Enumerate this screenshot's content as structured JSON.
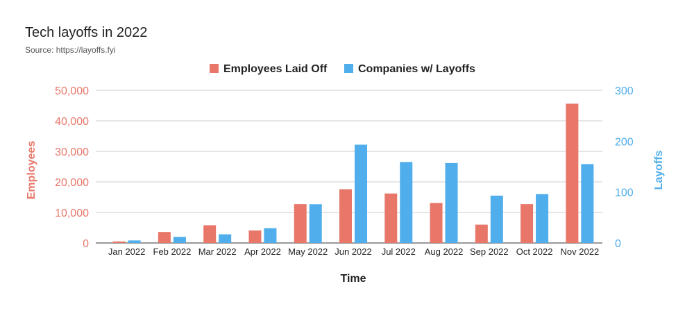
{
  "chart_data": {
    "type": "bar",
    "title": "Tech layoffs in 2022",
    "subtitle": "Source: https://layoffs.fyi",
    "xlabel": "Time",
    "ylabel_left": "Employees",
    "ylabel_right": "Layoffs",
    "categories": [
      "Jan 2022",
      "Feb 2022",
      "Mar 2022",
      "Apr 2022",
      "May 2022",
      "Jun 2022",
      "Jul 2022",
      "Aug 2022",
      "Sep 2022",
      "Oct 2022",
      "Nov 2022"
    ],
    "series": [
      {
        "name": "Employees Laid Off",
        "axis": "left",
        "color": "#E8776A",
        "values": [
          500,
          3600,
          5800,
          4100,
          12700,
          17600,
          16200,
          13100,
          6000,
          12700,
          45600
        ]
      },
      {
        "name": "Companies w/ Layoffs",
        "axis": "right",
        "color": "#4FAEEB",
        "values": [
          5,
          12,
          17,
          29,
          76,
          193,
          159,
          157,
          93,
          96,
          155
        ]
      }
    ],
    "ylim_left": [
      0,
      50000
    ],
    "yticks_left": [
      "0",
      "10,000",
      "20,000",
      "30,000",
      "40,000",
      "50,000"
    ],
    "ylim_right": [
      0,
      300
    ],
    "yticks_right": [
      "0",
      "100",
      "200",
      "300"
    ],
    "left_axis_color": "#E8776A",
    "right_axis_color": "#4FAEEB",
    "grid": true,
    "legend_position": "top-center"
  }
}
